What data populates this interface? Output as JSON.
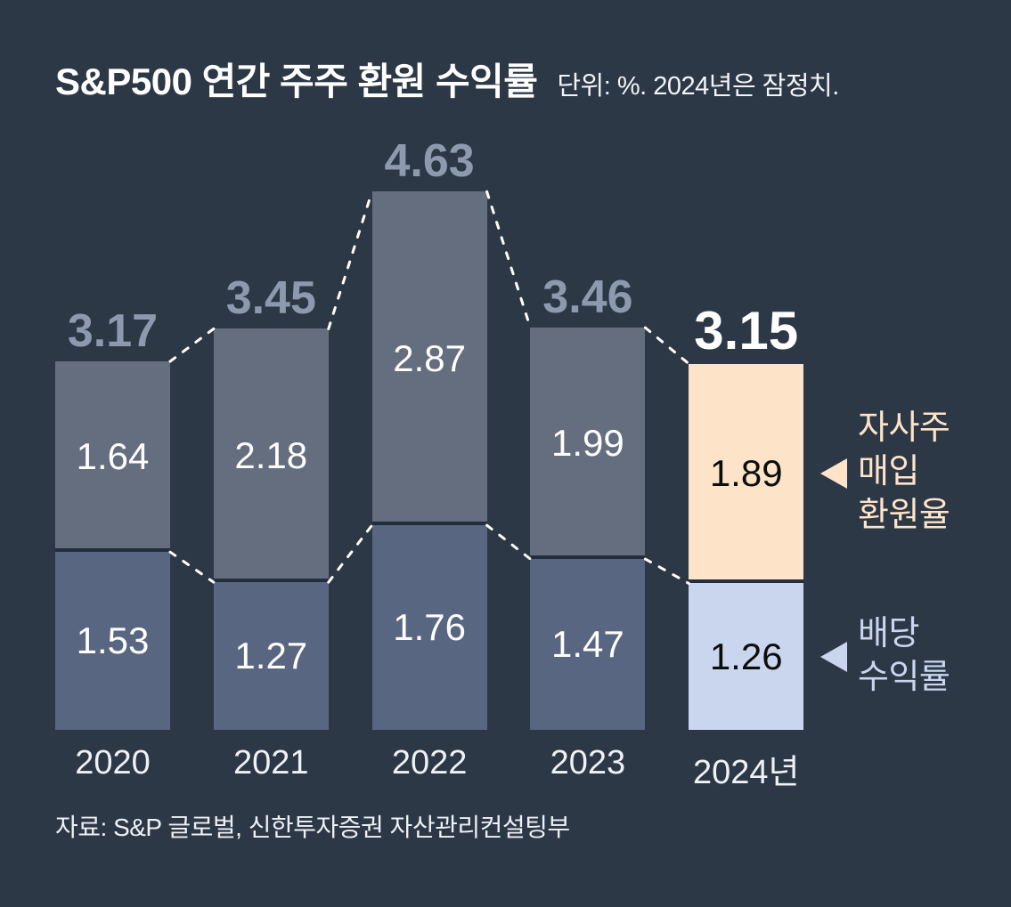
{
  "title": "S&P500 연간 주주 환원 수익률",
  "subtitle": "단위: %.  2024년은 잠정치.",
  "source": "자료: S&P 글로벌, 신한투자증권 자산관리컨설팅부",
  "legend": {
    "buyback": {
      "label": "자사주 매입 환원율",
      "lines": [
        "자사주",
        "매입",
        "환원율"
      ],
      "arrow": "left-triangle"
    },
    "dividend": {
      "label": "배당 수익률",
      "lines": [
        "배당",
        "수익률"
      ],
      "arrow": "left-triangle"
    }
  },
  "colors": {
    "background": "#2d3847",
    "buyback_bar": "#656e7f",
    "dividend_bar": "#596681",
    "highlight_buyback_bar": "#fde4c8",
    "highlight_dividend_bar": "#c9d6ee",
    "total_label": "#8d9aad",
    "highlight_total_label": "#ffffff",
    "value_text_dark_bars": "#ffffff",
    "value_text_highlight_bar": "#0d0d0d",
    "connector": "#ffffff",
    "divider": "#232d3c"
  },
  "chart_data": {
    "type": "bar",
    "stacked": true,
    "title": "S&P500 연간 주주 환원 수익률",
    "unit_note": "단위: %. 2024년은 잠정치.",
    "categories": [
      "2020",
      "2021",
      "2022",
      "2023",
      "2024년"
    ],
    "series": [
      {
        "name": "배당 수익률",
        "values": [
          1.53,
          1.27,
          1.76,
          1.47,
          1.26
        ]
      },
      {
        "name": "자사주 매입 환원율",
        "values": [
          1.64,
          2.18,
          2.87,
          1.99,
          1.89
        ]
      }
    ],
    "totals": [
      3.17,
      3.45,
      4.63,
      3.46,
      3.15
    ],
    "highlight_index": 4,
    "ylim": [
      0,
      4.63
    ],
    "grid": false,
    "legend_position": "right",
    "value_labels": "inside-center",
    "total_labels": "above-bar",
    "connectors": "dashed lines between adjacent bars at total top and at dividend/buyback boundary"
  }
}
